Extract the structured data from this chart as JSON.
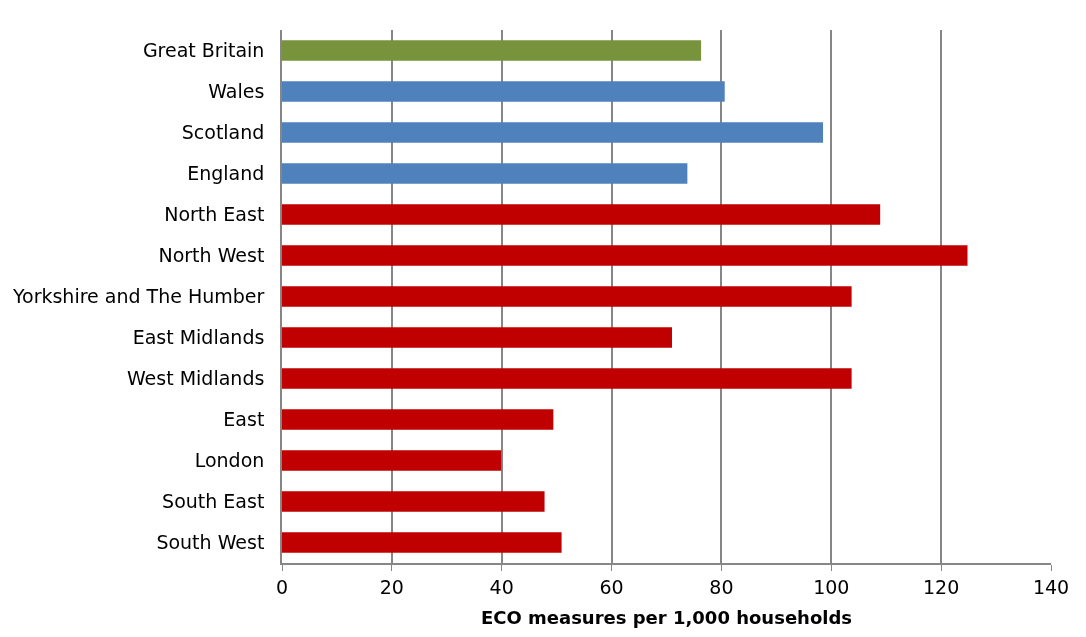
{
  "chart_data": {
    "type": "bar",
    "orientation": "horizontal",
    "xlabel": "ECO measures per 1,000 households",
    "categories": [
      "Great Britain",
      "Wales",
      "Scotland",
      "England",
      "North East",
      "North West",
      "Yorkshire and The Humber",
      "East Midlands",
      "West Midlands",
      "East",
      "London",
      "South East",
      "South West"
    ],
    "values": [
      76.3,
      80.6,
      98.5,
      73.8,
      108.9,
      124.8,
      103.7,
      71.0,
      103.7,
      49.4,
      39.9,
      47.8,
      50.9
    ],
    "colors": [
      "#77933c",
      "#4f81bd",
      "#4f81bd",
      "#4f81bd",
      "#c00000",
      "#c00000",
      "#c00000",
      "#c00000",
      "#c00000",
      "#c00000",
      "#c00000",
      "#c00000",
      "#c00000"
    ],
    "xlim": [
      0,
      140
    ],
    "xticks": [
      0,
      20,
      40,
      60,
      80,
      100,
      120,
      140
    ],
    "grid": "x"
  }
}
